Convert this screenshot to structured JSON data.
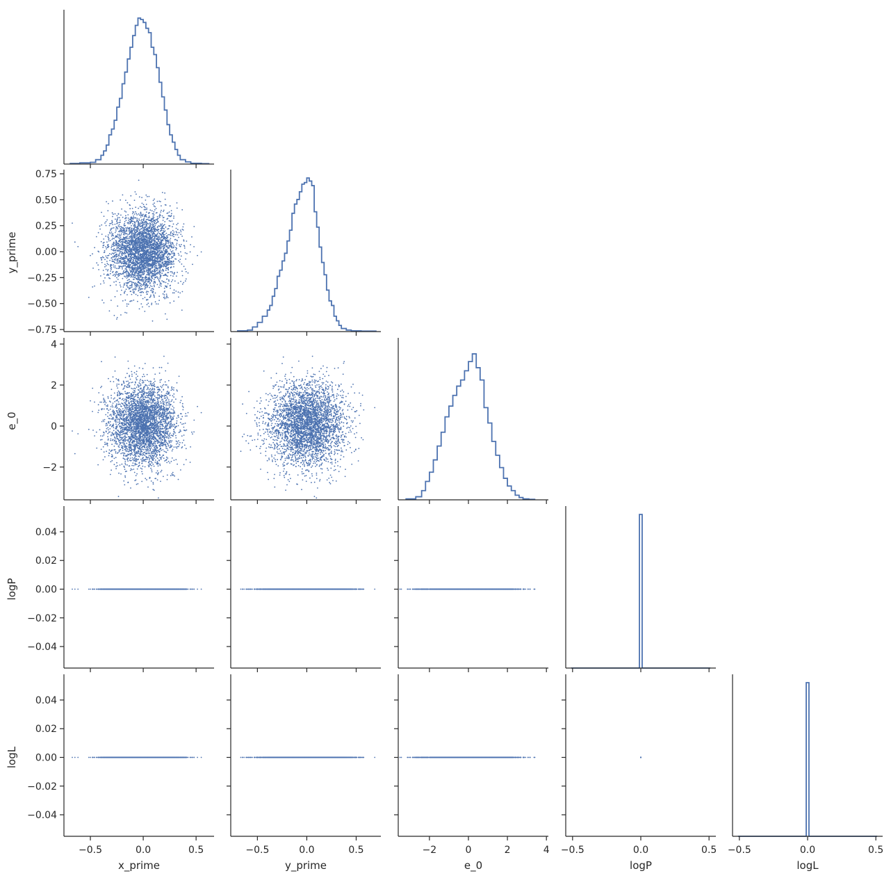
{
  "chart_data": {
    "type": "scatter",
    "kind": "corner-pairplot",
    "variables": [
      "x_prime",
      "y_prime",
      "e_0",
      "logP",
      "logL"
    ],
    "color": "#4c72b0",
    "axis_ranges": {
      "x_prime": [
        -0.75,
        0.67
      ],
      "y_prime": [
        -0.77,
        0.75
      ],
      "e_0": [
        -3.6,
        4.1
      ],
      "logP": [
        -0.55,
        0.55
      ],
      "logL": [
        -0.55,
        0.55
      ]
    },
    "diag_ylim": [
      -0.055,
      0.055
    ],
    "ticks": {
      "x_prime": [
        -0.5,
        0.0,
        0.5
      ],
      "x_prime_labels": [
        "−0.5",
        "0.0",
        "0.5"
      ],
      "y_prime": [
        -0.5,
        0.0,
        0.5
      ],
      "y_prime_labels": [
        "−0.5",
        "0.0",
        "0.5"
      ],
      "y_prime_row": [
        -0.75,
        -0.5,
        -0.25,
        0.0,
        0.25,
        0.5,
        0.75
      ],
      "y_prime_row_labels": [
        "−0.75",
        "−0.50",
        "−0.25",
        "0.00",
        "0.25",
        "0.50",
        "0.75"
      ],
      "e_0": [
        -2,
        0,
        2,
        4
      ],
      "e_0_labels": [
        "−2",
        "0",
        "2",
        "4"
      ],
      "e_0_row": [
        -2,
        0,
        2,
        4
      ],
      "e_0_row_labels": [
        "−2",
        "0",
        "2",
        "4"
      ],
      "log_col": [
        -0.5,
        0.0,
        0.5
      ],
      "log_col_labels": [
        "−0.5",
        "0.0",
        "0.5"
      ],
      "log_row": [
        -0.04,
        -0.02,
        0.0,
        0.02,
        0.04
      ],
      "log_row_labels": [
        "−0.04",
        "−0.02",
        "0.00",
        "0.02",
        "0.04"
      ]
    },
    "histograms": {
      "x_prime": {
        "bins": [
          -0.69,
          -0.6,
          -0.5,
          -0.45,
          -0.4,
          -0.375,
          -0.35,
          -0.325,
          -0.3,
          -0.275,
          -0.25,
          -0.225,
          -0.2,
          -0.175,
          -0.15,
          -0.125,
          -0.1,
          -0.075,
          -0.05,
          -0.025,
          0.0,
          0.025,
          0.05,
          0.075,
          0.1,
          0.125,
          0.15,
          0.175,
          0.2,
          0.225,
          0.25,
          0.275,
          0.3,
          0.325,
          0.35,
          0.4,
          0.45,
          0.55,
          0.62
        ],
        "counts": [
          0.004,
          0.008,
          0.012,
          0.03,
          0.06,
          0.09,
          0.13,
          0.2,
          0.24,
          0.3,
          0.39,
          0.45,
          0.55,
          0.63,
          0.72,
          0.8,
          0.88,
          0.95,
          1.0,
          0.99,
          0.97,
          0.93,
          0.9,
          0.8,
          0.75,
          0.66,
          0.56,
          0.46,
          0.37,
          0.27,
          0.2,
          0.15,
          0.1,
          0.06,
          0.03,
          0.015,
          0.005,
          0.003
        ]
      },
      "y_prime": {
        "bins": [
          -0.7,
          -0.6,
          -0.55,
          -0.5,
          -0.45,
          -0.4,
          -0.375,
          -0.35,
          -0.325,
          -0.3,
          -0.275,
          -0.25,
          -0.225,
          -0.2,
          -0.175,
          -0.15,
          -0.125,
          -0.1,
          -0.075,
          -0.05,
          -0.025,
          0.0,
          0.025,
          0.05,
          0.075,
          0.1,
          0.125,
          0.15,
          0.175,
          0.2,
          0.225,
          0.25,
          0.275,
          0.3,
          0.325,
          0.35,
          0.4,
          0.45,
          0.55,
          0.7
        ],
        "counts": [
          0.005,
          0.01,
          0.03,
          0.06,
          0.1,
          0.14,
          0.17,
          0.23,
          0.28,
          0.36,
          0.4,
          0.46,
          0.51,
          0.59,
          0.66,
          0.77,
          0.83,
          0.86,
          0.91,
          0.96,
          0.97,
          1.0,
          0.98,
          0.95,
          0.78,
          0.68,
          0.55,
          0.45,
          0.37,
          0.27,
          0.2,
          0.17,
          0.1,
          0.07,
          0.04,
          0.02,
          0.01,
          0.005,
          0.003
        ]
      },
      "e_0": {
        "bins": [
          -3.2,
          -2.7,
          -2.4,
          -2.2,
          -2.0,
          -1.8,
          -1.6,
          -1.4,
          -1.2,
          -1.0,
          -0.8,
          -0.6,
          -0.4,
          -0.2,
          0.0,
          0.2,
          0.4,
          0.6,
          0.8,
          1.0,
          1.2,
          1.4,
          1.6,
          1.8,
          2.0,
          2.2,
          2.4,
          2.6,
          2.8,
          3.1,
          3.4
        ],
        "counts": [
          0.006,
          0.02,
          0.06,
          0.12,
          0.18,
          0.26,
          0.35,
          0.44,
          0.54,
          0.61,
          0.68,
          0.74,
          0.78,
          0.84,
          0.9,
          0.95,
          0.86,
          0.78,
          0.6,
          0.5,
          0.38,
          0.29,
          0.21,
          0.14,
          0.09,
          0.06,
          0.03,
          0.015,
          0.006,
          0.003
        ]
      },
      "logP": {
        "bins": [
          -0.51,
          -0.01,
          0.01,
          0.51
        ],
        "counts": [
          0,
          1,
          0
        ]
      },
      "logL": {
        "bins": [
          -0.51,
          -0.01,
          0.01,
          0.51
        ],
        "counts": [
          0,
          1,
          0
        ]
      }
    },
    "scatter": {
      "n_points": 3500,
      "x_prime": {
        "mean": 0.0,
        "std": 0.16
      },
      "y_prime": {
        "mean": 0.0,
        "std": 0.19
      },
      "e_0": {
        "mean": 0.1,
        "std": 1.0
      },
      "logP": {
        "value": 0.0
      },
      "logL": {
        "value": 0.0
      }
    }
  }
}
